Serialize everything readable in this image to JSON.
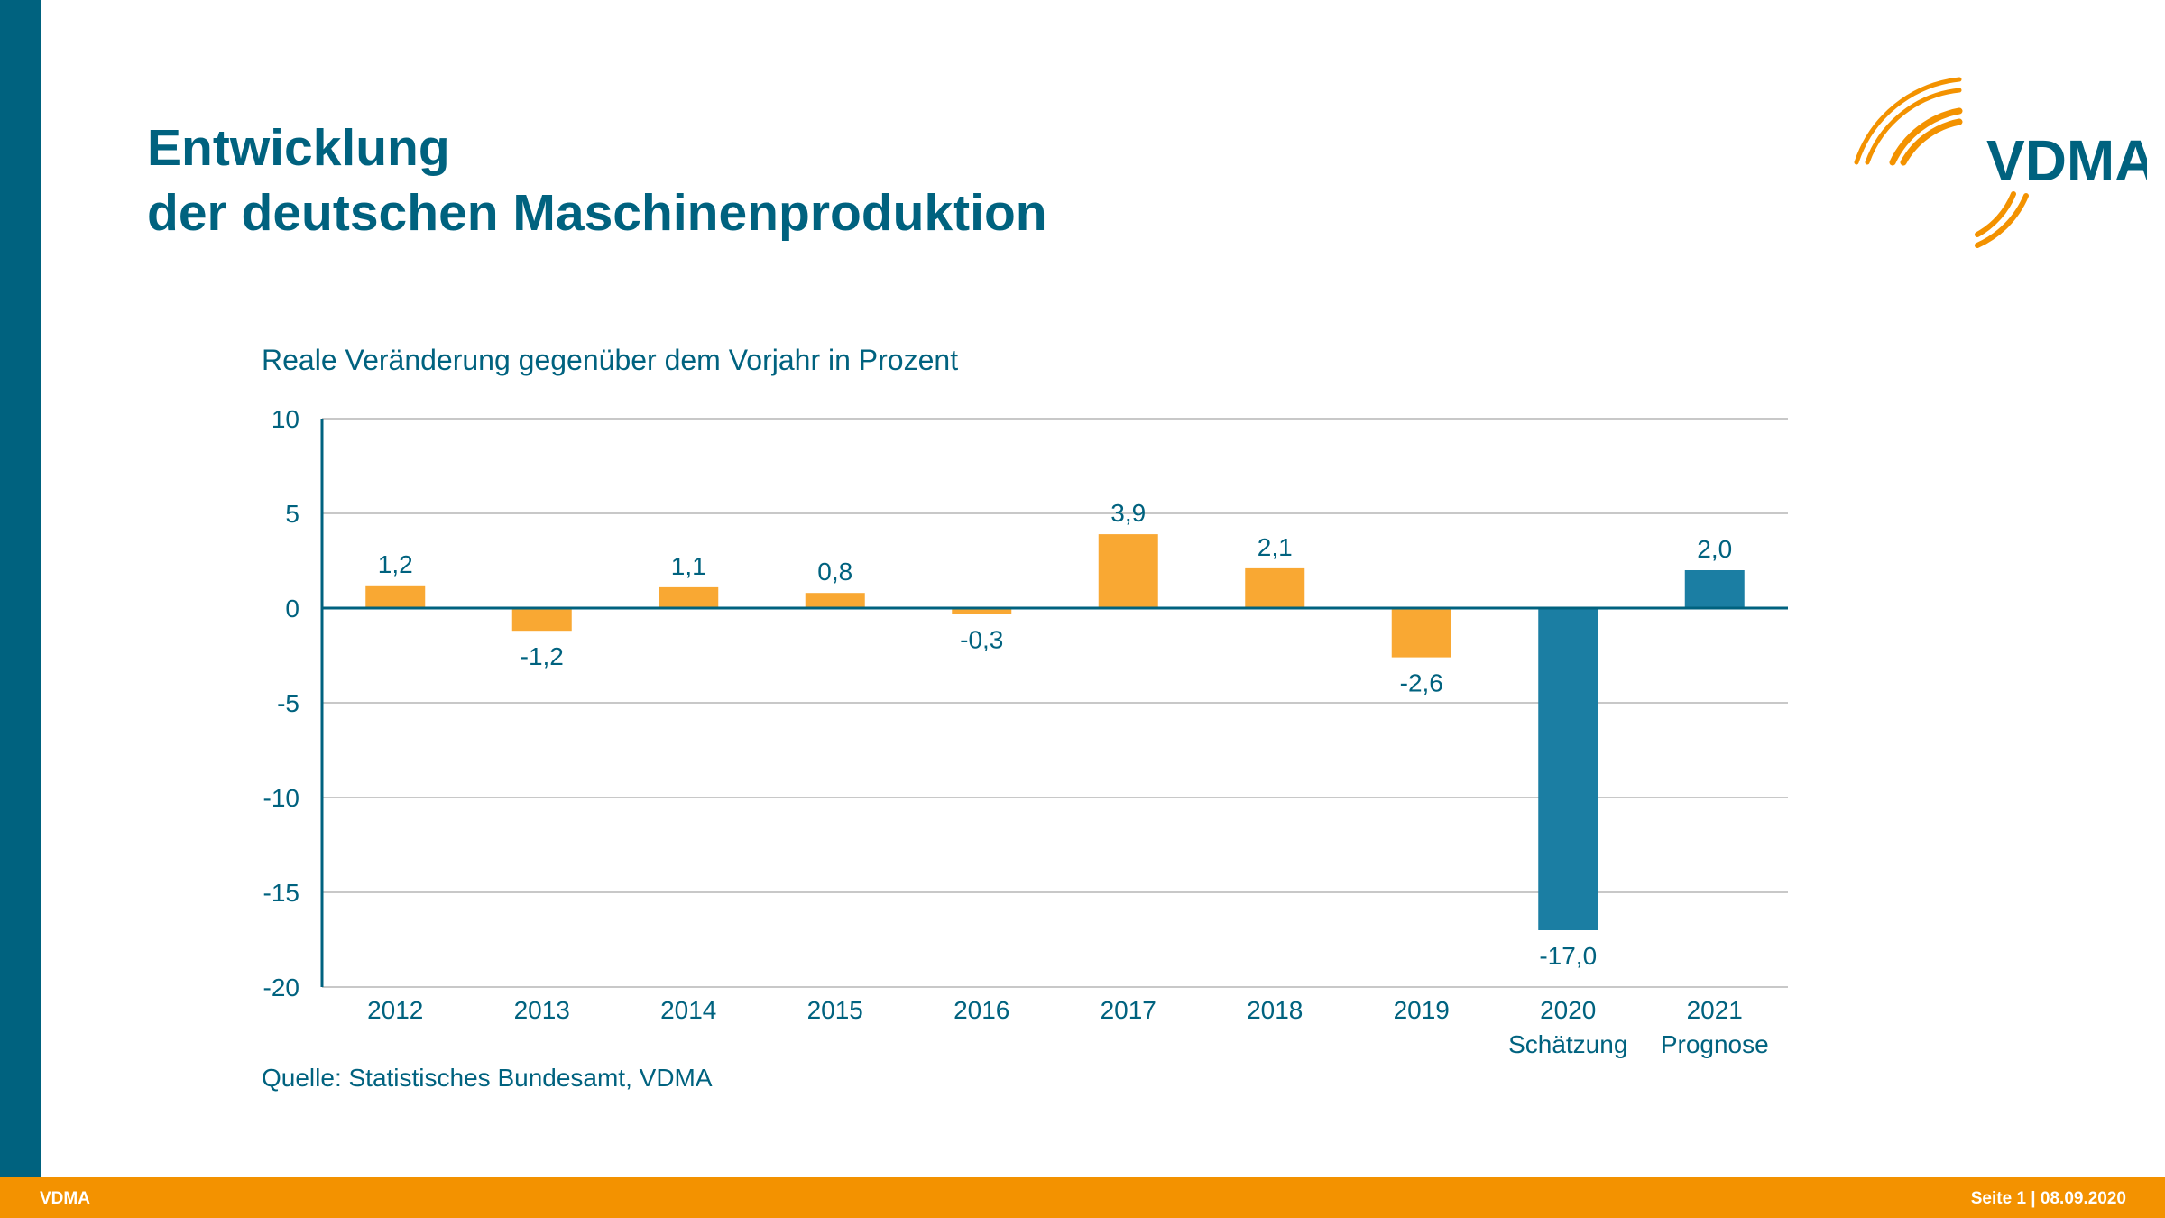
{
  "slide": {
    "title_line1": "Entwicklung",
    "title_line2": "der deutschen Maschinenproduktion",
    "logo_text": "VDMA",
    "subtitle": "Reale Veränderung gegenüber dem Vorjahr in Prozent",
    "source": "Quelle: Statistisches Bundesamt, VDMA"
  },
  "footer": {
    "left": "VDMA",
    "page_label": "Seite 1",
    "separator": "|",
    "date": "08.09.2020"
  },
  "colors": {
    "brand_blue": "#00627f",
    "bar_orange": "#f9a833",
    "bar_blue": "#1b7ea3",
    "footer_orange": "#f39200",
    "grid": "#c8c8c8"
  },
  "chart_data": {
    "type": "bar",
    "title": "Reale Veränderung gegenüber dem Vorjahr in Prozent",
    "xlabel": "",
    "ylabel": "",
    "ylim": [
      -20,
      10
    ],
    "yticks": [
      10,
      5,
      0,
      -5,
      -10,
      -15,
      -20
    ],
    "grid": true,
    "legend": "none",
    "categories": [
      "2012",
      "2013",
      "2014",
      "2015",
      "2016",
      "2017",
      "2018",
      "2019",
      "2020",
      "2021"
    ],
    "category_sublabels": [
      "",
      "",
      "",
      "",
      "",
      "",
      "",
      "",
      "Schätzung",
      "Prognose"
    ],
    "values": [
      1.2,
      -1.2,
      1.1,
      0.8,
      -0.3,
      3.9,
      2.1,
      -2.6,
      -17.0,
      2.0
    ],
    "value_labels": [
      "1,2",
      "-1,2",
      "1,1",
      "0,8",
      "-0,3",
      "3,9",
      "2,1",
      "-2,6",
      "-17,0",
      "2,0"
    ],
    "bar_kind": [
      "actual",
      "actual",
      "actual",
      "actual",
      "actual",
      "actual",
      "actual",
      "actual",
      "estimate",
      "forecast"
    ],
    "source": "Quelle: Statistisches Bundesamt, VDMA"
  }
}
